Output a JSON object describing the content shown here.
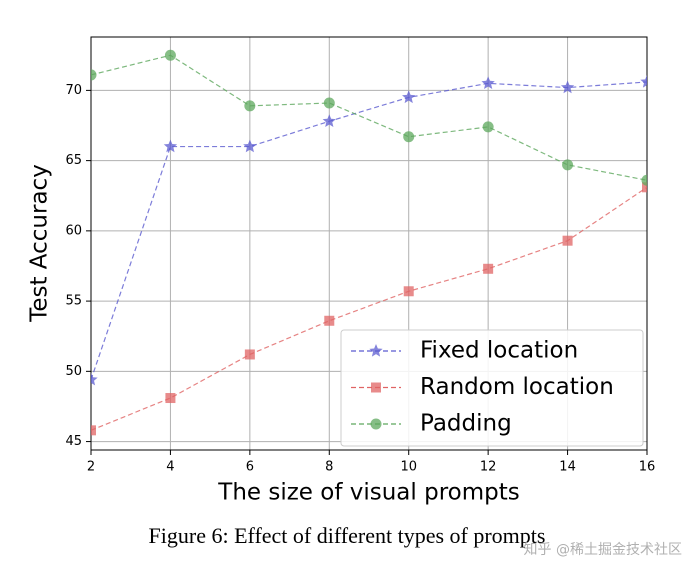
{
  "chart_data": {
    "type": "line",
    "xlabel": "The size of visual prompts",
    "ylabel": "Test Accuracy",
    "caption": "Figure 6: Effect of different types of prompts",
    "watermark": "知乎 @稀土掘金技术社区",
    "x": [
      2,
      4,
      6,
      8,
      10,
      12,
      14,
      16
    ],
    "series": [
      {
        "name": "Fixed location",
        "color": "#5b5bd0",
        "marker": "star",
        "values": [
          49.4,
          66,
          66,
          67.8,
          69.5,
          70.5,
          70.2,
          70.6
        ]
      },
      {
        "name": "Random location",
        "color": "#e06464",
        "marker": "square",
        "values": [
          45.8,
          48.1,
          51.2,
          53.6,
          55.7,
          57.3,
          59.3,
          63.1
        ]
      },
      {
        "name": "Padding",
        "color": "#5ea85e",
        "marker": "circle",
        "values": [
          71.1,
          72.5,
          68.9,
          69.1,
          66.7,
          67.4,
          64.7,
          63.6
        ]
      }
    ],
    "xlim": [
      2,
      16
    ],
    "xticks": [
      2,
      4,
      6,
      8,
      10,
      12,
      14,
      16
    ],
    "ylim": [
      44.4,
      73.8
    ],
    "yticks": [
      45,
      50,
      55,
      60,
      65,
      70
    ],
    "grid": true,
    "legend": "lower right"
  }
}
